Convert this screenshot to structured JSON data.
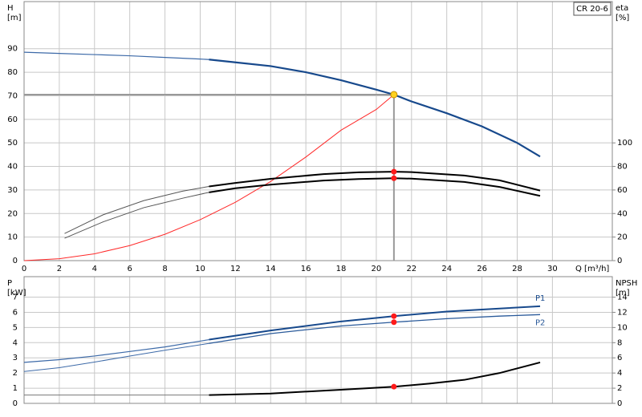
{
  "chart_data": [
    {
      "type": "line",
      "y_label": "H",
      "y_unit": "[m]",
      "y2_label": "eta",
      "y2_unit": "[%]",
      "x_label": "Q [m³/h]",
      "annotation": "CR 20-6",
      "xlim": [
        0,
        33.4
      ],
      "xticks": [
        0,
        2,
        4,
        6,
        8,
        10,
        12,
        14,
        16,
        18,
        20,
        22,
        24,
        26,
        28,
        30
      ],
      "ylim": [
        0,
        110
      ],
      "yticks": [
        0,
        10,
        20,
        30,
        40,
        50,
        60,
        70,
        80,
        90
      ],
      "y2lim": [
        0,
        220
      ],
      "y2ticks": [
        0,
        20,
        40,
        60,
        80,
        100
      ],
      "grid": true,
      "series": [
        {
          "color": "#3d6aa8",
          "width": 1.2,
          "x": [
            0,
            2,
            4,
            6,
            8,
            10,
            10.5
          ],
          "values": [
            88.5,
            88,
            87.5,
            87,
            86.3,
            85.6,
            85.4
          ]
        },
        {
          "color": "#17498c",
          "width": 2.2,
          "x": [
            10.5,
            12,
            14,
            16,
            18,
            20,
            21,
            22,
            24,
            26,
            28,
            29.3
          ],
          "values": [
            85.4,
            84.2,
            82.6,
            80,
            76.6,
            72.6,
            70.5,
            67.6,
            62.6,
            57,
            50,
            44.2
          ]
        },
        {
          "color": "#ff2a2a",
          "width": 1,
          "x": [
            0,
            2,
            4,
            6,
            8,
            10,
            12,
            14,
            16,
            18,
            20,
            21
          ],
          "values": [
            0,
            0.8,
            2.9,
            6.4,
            11.2,
            17.4,
            24.8,
            33.6,
            44,
            55.4,
            64.2,
            70.5
          ]
        },
        {
          "color": "#555555",
          "width": 1,
          "axis": "y2",
          "x": [
            2.3,
            4.5,
            6.8,
            9,
            10.5
          ],
          "values": [
            23,
            39,
            51,
            59,
            63
          ]
        },
        {
          "color": "#000000",
          "width": 2,
          "axis": "y2",
          "x": [
            10.5,
            12,
            14,
            17,
            19,
            21,
            22,
            25,
            27,
            29.3
          ],
          "values": [
            63,
            66,
            69.5,
            73.5,
            75,
            75.5,
            75.2,
            72.3,
            68.2,
            59.5
          ]
        },
        {
          "color": "#555555",
          "width": 1,
          "axis": "y2",
          "x": [
            2.3,
            4.5,
            6.8,
            9,
            10.5
          ],
          "values": [
            19,
            33,
            45,
            53,
            58
          ]
        },
        {
          "color": "#000000",
          "width": 2,
          "axis": "y2",
          "x": [
            10.5,
            12,
            14,
            17,
            19,
            21,
            22,
            25,
            27,
            29.3
          ],
          "values": [
            58,
            61.5,
            64.5,
            68,
            69.3,
            70,
            69.6,
            66.8,
            62.6,
            55
          ]
        }
      ],
      "markers": [
        {
          "x": 21,
          "y": 70.5,
          "color": "#ffd21f",
          "guide": true
        },
        {
          "x": 21,
          "y": 75.5,
          "color": "#ff1a1a",
          "axis": "y2"
        },
        {
          "x": 21,
          "y": 70,
          "color": "#ff1a1a",
          "axis": "y2"
        }
      ]
    },
    {
      "type": "line",
      "y_label": "P",
      "y_unit": "[kW]",
      "y2_label": "NPSH",
      "y2_unit": "[m]",
      "xlim": [
        0,
        33.4
      ],
      "xticks": [
        0,
        2,
        4,
        6,
        8,
        10,
        12,
        14,
        16,
        18,
        20,
        22,
        24,
        26,
        28,
        30
      ],
      "show_xtick_labels": false,
      "ylim": [
        0,
        8.35
      ],
      "yticks": [
        0,
        1,
        2,
        3,
        4,
        5,
        6,
        7
      ],
      "y2lim": [
        0,
        16.7
      ],
      "y2ticks": [
        0,
        2,
        4,
        6,
        8,
        10,
        12,
        14
      ],
      "grid": true,
      "series": [
        {
          "color": "#3d6aa8",
          "width": 1.2,
          "x": [
            0,
            2,
            4,
            6,
            8,
            10.5
          ],
          "values": [
            2.7,
            2.88,
            3.12,
            3.42,
            3.72,
            4.2
          ]
        },
        {
          "name": "P1",
          "color": "#17498c",
          "width": 2,
          "x": [
            10.5,
            14,
            18,
            21,
            24,
            27,
            29.3
          ],
          "values": [
            4.2,
            4.8,
            5.4,
            5.75,
            6.05,
            6.25,
            6.4
          ]
        },
        {
          "color": "#3d6aa8",
          "width": 1,
          "x": [
            0,
            2,
            4,
            6,
            8,
            10.5
          ],
          "values": [
            2.1,
            2.35,
            2.72,
            3.12,
            3.5,
            3.95
          ]
        },
        {
          "name": "P2",
          "color": "#2a5a9a",
          "width": 1.3,
          "x": [
            10.5,
            14,
            18,
            21,
            24,
            27,
            29.3
          ],
          "values": [
            3.95,
            4.6,
            5.1,
            5.35,
            5.58,
            5.75,
            5.85
          ]
        },
        {
          "color": "#777777",
          "width": 1,
          "axis": "y2",
          "x": [
            0,
            10.5
          ],
          "values": [
            1.1,
            1.1
          ]
        },
        {
          "color": "#000000",
          "width": 2,
          "axis": "y2",
          "x": [
            10.5,
            14,
            18,
            21,
            23,
            25,
            27,
            29.3
          ],
          "values": [
            1.1,
            1.3,
            1.8,
            2.2,
            2.6,
            3.1,
            4.0,
            5.4
          ]
        }
      ],
      "markers": [
        {
          "x": 21,
          "y": 5.75,
          "color": "#ff1a1a"
        },
        {
          "x": 21,
          "y": 5.35,
          "color": "#ff1a1a"
        },
        {
          "x": 21,
          "y": 2.2,
          "color": "#ff1a1a",
          "axis": "y2"
        }
      ]
    }
  ]
}
